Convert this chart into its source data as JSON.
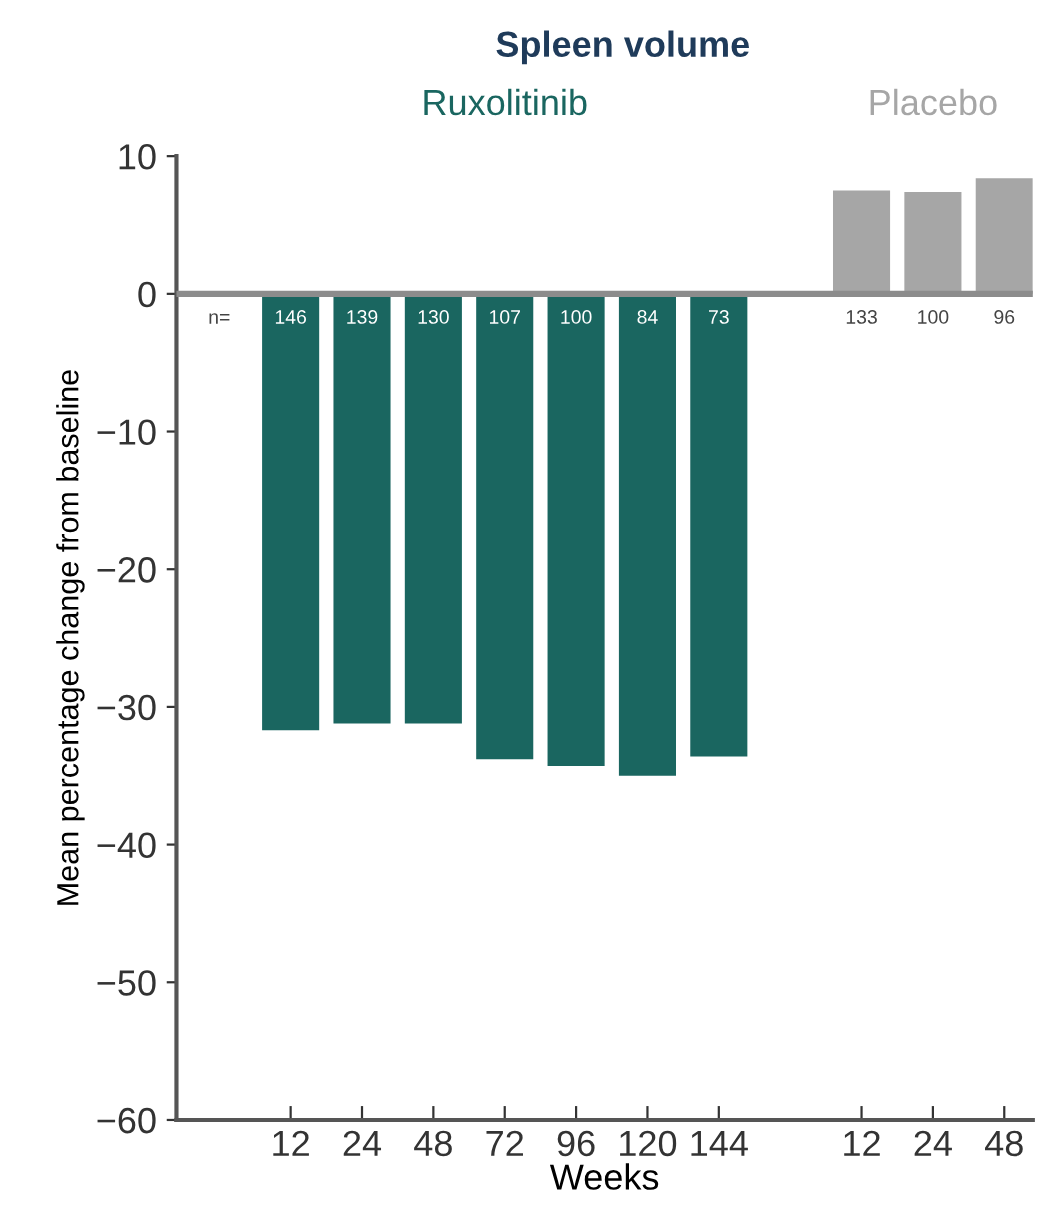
{
  "chart_data": {
    "type": "bar",
    "title": "Spleen volume",
    "xlabel": "Weeks",
    "ylabel": "Mean percentage change from baseline",
    "categories": [
      null,
      "12",
      "24",
      "48",
      "72",
      "96",
      "120",
      "144",
      null,
      "12",
      "24",
      "48"
    ],
    "series": [
      {
        "name": "Ruxolitinib",
        "color": "#1a6660",
        "values": [
          null,
          -31.7,
          -31.2,
          -31.2,
          -33.8,
          -34.3,
          -35.0,
          -33.6,
          null,
          null,
          null,
          null
        ]
      },
      {
        "name": "Placebo",
        "color": "#a6a6a6",
        "values": [
          null,
          null,
          null,
          null,
          null,
          null,
          null,
          null,
          null,
          7.5,
          7.4,
          8.4
        ]
      }
    ],
    "annotations": [
      "n=",
      "146",
      "139",
      "130",
      "107",
      "100",
      "84",
      "73",
      "133",
      "100",
      "96"
    ],
    "ref_lines": [
      {
        "axis": "y",
        "value": 0,
        "color": "#8c8c8c"
      }
    ],
    "ylim": [
      -60,
      10
    ],
    "yticks": [
      10,
      0,
      {
        "value": -10,
        "label": "−10"
      },
      {
        "value": -20,
        "label": "−20"
      },
      {
        "value": -30,
        "label": "−30"
      },
      {
        "value": -40,
        "label": "−40"
      },
      {
        "value": -50,
        "label": "−50"
      },
      {
        "value": -60,
        "label": "−60"
      }
    ],
    "grid": false,
    "legend": false
  }
}
